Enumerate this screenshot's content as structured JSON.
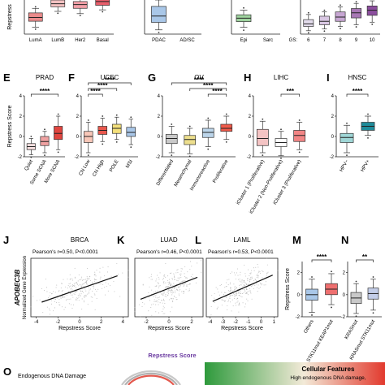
{
  "chart_data": [
    {
      "id": "row1-a",
      "type": "box",
      "title": "",
      "ylabel": "Repstress",
      "categories": [
        "LumA",
        "LumB",
        "Her2",
        "Basal"
      ],
      "colors": [
        "#e98b8b",
        "#f4c1c1",
        "#f2a0a8",
        "#e85e6b"
      ],
      "stats": [
        [
          -2.1,
          -1.3,
          -0.8,
          -0.2,
          0.4
        ],
        [
          0.0,
          0.6,
          1.0,
          1.5,
          2.0
        ],
        [
          -0.3,
          0.4,
          0.9,
          1.3,
          1.8
        ],
        [
          0.2,
          0.8,
          1.3,
          1.8,
          2.3
        ]
      ],
      "ylim": [
        -3,
        1.5
      ]
    },
    {
      "id": "row1-b",
      "type": "box",
      "title": "",
      "ylabel": "",
      "categories": [
        "PDAC",
        "AD/SC"
      ],
      "colors": [
        "#a9c7e8",
        "#e9a3a9"
      ],
      "stats": [
        [
          -1.6,
          -0.9,
          -0.3,
          0.6,
          1.2
        ],
        [
          0,
          0,
          0,
          0,
          0
        ]
      ],
      "ylim": [
        -2,
        1.2
      ]
    },
    {
      "id": "row1-c",
      "type": "box",
      "title": "",
      "ylabel": "",
      "categories": [
        "Epi",
        "Sarc"
      ],
      "colors": [
        "#9fd39f",
        "#cccccc"
      ],
      "stats": [
        [
          -1.4,
          -0.9,
          -0.6,
          -0.3,
          0.1
        ],
        [
          0,
          0,
          0,
          0,
          0
        ]
      ],
      "ylim": [
        -2,
        1
      ]
    },
    {
      "id": "row1-d",
      "type": "box",
      "title": "",
      "ylabel": "",
      "xprefix": "GS:",
      "categories": [
        "6",
        "7",
        "8",
        "9",
        "10"
      ],
      "colors": [
        "#e3dcec",
        "#d9c7e3",
        "#c7a6d3",
        "#a878b5",
        "#8c4e9e"
      ],
      "stats": [
        [
          -1.6,
          -1.1,
          -0.8,
          -0.3,
          0.3
        ],
        [
          -1.4,
          -0.9,
          -0.5,
          0.1,
          0.6
        ],
        [
          -1.1,
          -0.5,
          0.0,
          0.6,
          1.2
        ],
        [
          -0.9,
          -0.1,
          0.5,
          1.0,
          1.6
        ],
        [
          -0.6,
          0.2,
          0.8,
          1.3,
          1.9
        ]
      ],
      "ylim": [
        -2,
        2
      ]
    },
    {
      "id": "E",
      "label": "E",
      "type": "box",
      "title": "PRAD",
      "ylabel": "Repstress Score",
      "categories": [
        "Quiet",
        "Some SCNA",
        "More SCNA"
      ],
      "colors": [
        "#f5dede",
        "#f0a2a2",
        "#e0453f"
      ],
      "stats": [
        [
          -1.8,
          -1.3,
          -1.0,
          -0.7,
          -0.2
        ],
        [
          -1.6,
          -0.9,
          -0.5,
          0.0,
          0.5
        ],
        [
          -1.3,
          -0.3,
          0.3,
          1.0,
          2.0
        ]
      ],
      "ylim": [
        -2,
        4
      ],
      "yticks": [
        -2,
        0,
        2,
        4
      ],
      "sig": [
        {
          "from": 0,
          "to": 2,
          "level": 1,
          "text": "****"
        }
      ]
    },
    {
      "id": "F",
      "label": "F",
      "type": "box",
      "title": "UCEC",
      "ylabel": "",
      "categories": [
        "CN Low",
        "CN High",
        "POLE",
        "MSI"
      ],
      "colors": [
        "#f8c7b8",
        "#e8584d",
        "#f4e07b",
        "#a9c7e8"
      ],
      "stats": [
        [
          -1.6,
          -0.6,
          0.0,
          0.5,
          1.4
        ],
        [
          -0.5,
          0.2,
          0.6,
          1.0,
          1.8
        ],
        [
          -0.3,
          0.3,
          0.8,
          1.2,
          1.9
        ],
        [
          -0.8,
          0.0,
          0.4,
          0.9,
          1.7
        ]
      ],
      "ylim": [
        -2,
        4
      ],
      "yticks": [
        -2,
        0,
        2,
        4
      ],
      "sig": [
        {
          "from": 0,
          "to": 1,
          "level": 1,
          "text": "****"
        },
        {
          "from": 0,
          "to": 2,
          "level": 2,
          "text": "****"
        },
        {
          "from": 0,
          "to": 3,
          "level": 3,
          "text": "****"
        }
      ]
    },
    {
      "id": "G",
      "label": "G",
      "type": "box",
      "title": "OV",
      "ylabel": "",
      "categories": [
        "Differentiated",
        "Mesenchymal",
        "Immunoreactive",
        "Proliferative"
      ],
      "colors": [
        "#c9c9c9",
        "#eddf8d",
        "#bcd5ea",
        "#ef5a4a"
      ],
      "stats": [
        [
          -1.6,
          -0.7,
          -0.2,
          0.2,
          1.0
        ],
        [
          -1.7,
          -0.8,
          -0.3,
          0.1,
          0.8
        ],
        [
          -1.0,
          -0.1,
          0.4,
          0.8,
          1.6
        ],
        [
          -0.3,
          0.5,
          0.8,
          1.2,
          2.0
        ]
      ],
      "ylim": [
        -2,
        4
      ],
      "yticks": [
        -2,
        0,
        2,
        4
      ],
      "sig": [
        {
          "from": 2,
          "to": 3,
          "level": 1,
          "text": "****"
        },
        {
          "from": 1,
          "to": 3,
          "level": 2,
          "text": "****"
        },
        {
          "from": 0,
          "to": 3,
          "level": 3,
          "text": "****"
        }
      ]
    },
    {
      "id": "H",
      "label": "H",
      "type": "box",
      "title": "LIHC",
      "ylabel": "",
      "categories": [
        "iCluster 1 (Proliferative)",
        "iCluster 2 (Non-Proliferative)",
        "iCluster 3 (Proliferative)"
      ],
      "colors": [
        "#f4c4c4",
        "#ffffff",
        "#f28585"
      ],
      "stats": [
        [
          -1.6,
          -0.9,
          -0.2,
          0.7,
          1.5
        ],
        [
          -1.9,
          -1.0,
          -0.6,
          -0.2,
          0.5
        ],
        [
          -1.3,
          -0.5,
          0.1,
          0.6,
          1.4
        ]
      ],
      "ylim": [
        -2,
        4
      ],
      "yticks": [
        -2,
        0,
        2,
        4
      ],
      "sig": [
        {
          "from": 1,
          "to": 2,
          "level": 1,
          "text": "***"
        }
      ]
    },
    {
      "id": "I",
      "label": "I",
      "type": "box",
      "title": "HNSC",
      "ylabel": "",
      "categories": [
        "HPV−",
        "HPV+"
      ],
      "colors": [
        "#9fd6d6",
        "#1f8b9a"
      ],
      "stats": [
        [
          -1.6,
          -0.6,
          -0.1,
          0.3,
          1.1
        ],
        [
          0.1,
          0.6,
          1.0,
          1.4,
          2.0
        ]
      ],
      "ylim": [
        -2,
        4
      ],
      "yticks": [
        -2,
        0,
        2,
        4
      ],
      "sig": [
        {
          "from": 0,
          "to": 1,
          "level": 1,
          "text": "****"
        }
      ]
    },
    {
      "id": "J",
      "label": "J",
      "type": "scatter",
      "title": "BRCA",
      "ylabel": "Normalized Gene Expression",
      "ylabel_gene": "APOBEC3B",
      "xlabel": "Repstress Score",
      "annotation": "Pearson's r=0.50, P<0.0001",
      "xticks": [
        -4,
        -2,
        0,
        2,
        4
      ],
      "xlim": [
        -4.5,
        4.5
      ],
      "ylim": [
        -4,
        4
      ],
      "fit": [
        [
          -3.5,
          -2.0
        ],
        [
          3.5,
          1.6
        ]
      ]
    },
    {
      "id": "K",
      "label": "K",
      "type": "scatter",
      "title": "LUAD",
      "ylabel": "",
      "xlabel": "Repstress Score",
      "annotation": "Pearson's r=0.46, P<0.0001",
      "xticks": [
        -2,
        0,
        2
      ],
      "xlim": [
        -3,
        3
      ],
      "ylim": [
        -4,
        4
      ],
      "fit": [
        [
          -2.5,
          -1.6
        ],
        [
          2.5,
          1.4
        ]
      ]
    },
    {
      "id": "L",
      "label": "L",
      "type": "scatter",
      "title": "LAML",
      "ylabel": "",
      "xlabel": "Repstress Score",
      "annotation": "Pearson's r=0.53, P<0.0001",
      "xticks": [
        -4,
        -3,
        -2,
        -1,
        0,
        1
      ],
      "xlim": [
        -4.3,
        1.3
      ],
      "ylim": [
        -4,
        4
      ],
      "fit": [
        [
          -3.8,
          -1.9
        ],
        [
          0.9,
          1.7
        ]
      ]
    },
    {
      "id": "M",
      "label": "M",
      "type": "box",
      "title": "",
      "ylabel": "Repstress Score",
      "categories": [
        "Others",
        "STK11mut KEAP1mut"
      ],
      "colors": [
        "#a9c7e8",
        "#ee6f6f"
      ],
      "stats": [
        [
          -1.6,
          -0.5,
          0.0,
          0.5,
          1.4
        ],
        [
          -0.9,
          0.0,
          0.5,
          1.0,
          1.9
        ]
      ],
      "ylim": [
        -2,
        3
      ],
      "yticks": [
        -2,
        0,
        2
      ],
      "sig": [
        {
          "from": 0,
          "to": 1,
          "level": 1,
          "text": "****"
        }
      ]
    },
    {
      "id": "N",
      "label": "N",
      "type": "box",
      "title": "",
      "ylabel": "",
      "categories": [
        "KRASmut",
        "KRASmut STK11mut"
      ],
      "colors": [
        "#c9c9c9",
        "#c3cde8"
      ],
      "stats": [
        [
          -1.7,
          -0.8,
          -0.3,
          0.2,
          1.0
        ],
        [
          -1.4,
          -0.4,
          0.1,
          0.6,
          1.4
        ]
      ],
      "ylim": [
        -2,
        3
      ],
      "yticks": [
        -2,
        0,
        2
      ],
      "sig": [
        {
          "from": 0,
          "to": 1,
          "level": 1,
          "text": "**"
        }
      ]
    }
  ],
  "bottom": {
    "label": "O",
    "legend_title": "Repstress Score",
    "left_text": "Endogenous DNA Damage",
    "box_title": "Cellular Features",
    "box_text": "High endogenous DNA damage,",
    "colors": {
      "title": "#6a3aa0",
      "gradient_start": "#2e9a3c",
      "gradient_end": "#e23a2e"
    }
  }
}
